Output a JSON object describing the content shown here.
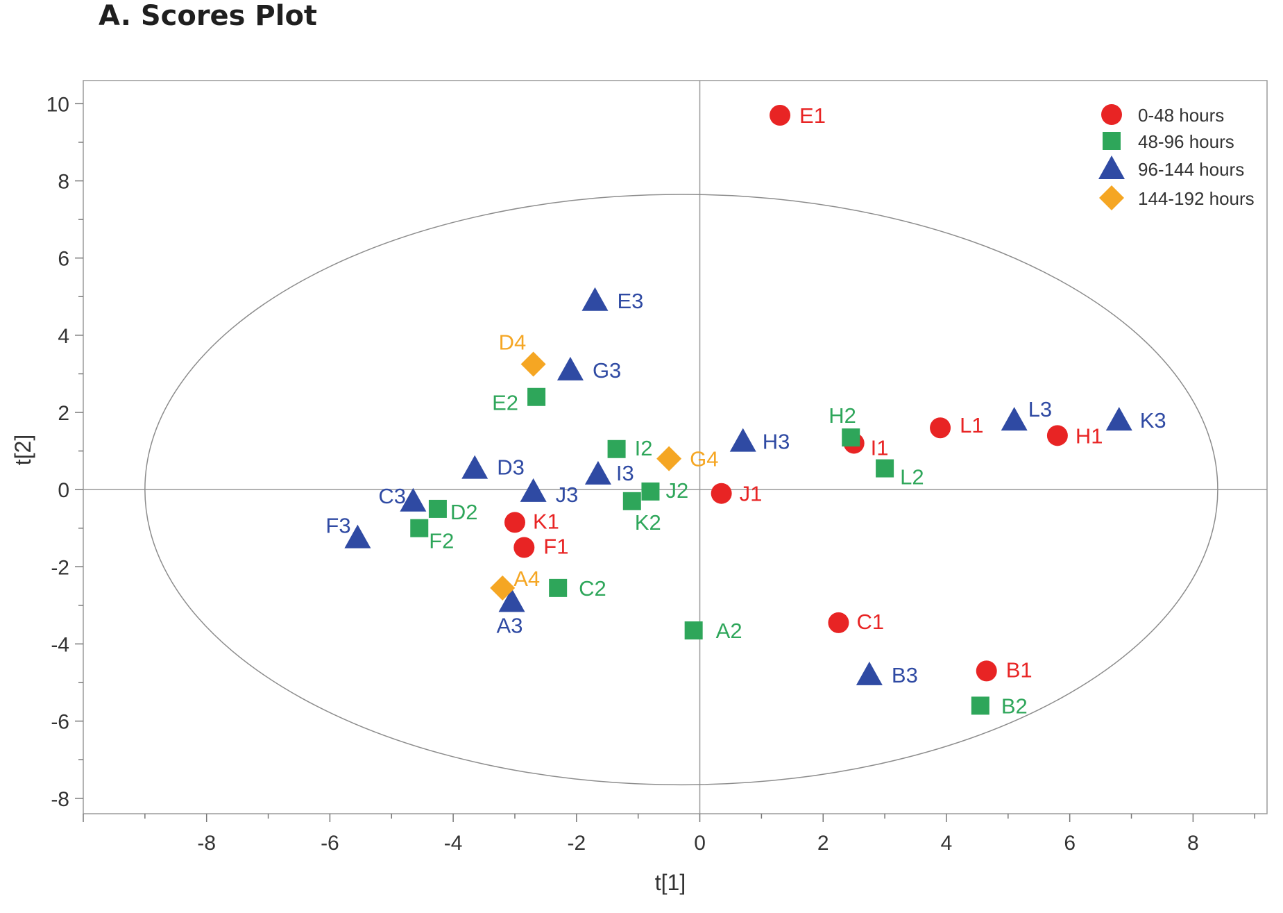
{
  "title": "A. Scores Plot",
  "chart_data": {
    "type": "scatter",
    "xlabel": "t[1]",
    "ylabel": "t[2]",
    "xlim": [
      -10,
      9.2
    ],
    "ylim": [
      -8.4,
      10.6
    ],
    "xticks": [
      "-8",
      "-6",
      "-4",
      "-2",
      "0",
      "2",
      "4",
      "6",
      "8"
    ],
    "yticks": [
      "10",
      "8",
      "6",
      "4",
      "2",
      "0",
      "-2",
      "-4",
      "-6",
      "-8"
    ],
    "ellipse": {
      "cx": -0.3,
      "cy": 0,
      "rx": 8.7,
      "ry": 7.65
    },
    "grid": false,
    "reference_lines": {
      "x": 0,
      "y": 0
    },
    "legend_position": "top-right",
    "series": [
      {
        "name": "0-48 hours",
        "marker": "circle",
        "color": "#e82424",
        "points": [
          {
            "label": "E1",
            "x": 1.3,
            "y": 9.7
          },
          {
            "label": "L1",
            "x": 3.9,
            "y": 1.6
          },
          {
            "label": "H1",
            "x": 5.8,
            "y": 1.4
          },
          {
            "label": "I1",
            "x": 2.5,
            "y": 1.2
          },
          {
            "label": "J1",
            "x": 0.35,
            "y": -0.1
          },
          {
            "label": "K1",
            "x": -3.0,
            "y": -0.85
          },
          {
            "label": "F1",
            "x": -2.85,
            "y": -1.5
          },
          {
            "label": "C1",
            "x": 2.25,
            "y": -3.45
          },
          {
            "label": "B1",
            "x": 4.65,
            "y": -4.7
          }
        ]
      },
      {
        "name": "48-96 hours",
        "marker": "square",
        "color": "#2ea65a",
        "points": [
          {
            "label": "E2",
            "x": -2.65,
            "y": 2.4
          },
          {
            "label": "I2",
            "x": -1.35,
            "y": 1.05
          },
          {
            "label": "H2",
            "x": 2.45,
            "y": 1.35
          },
          {
            "label": "L2",
            "x": 3.0,
            "y": 0.55
          },
          {
            "label": "J2",
            "x": -0.8,
            "y": -0.05
          },
          {
            "label": "K2",
            "x": -1.1,
            "y": -0.3
          },
          {
            "label": "D2",
            "x": -4.25,
            "y": -0.5
          },
          {
            "label": "F2",
            "x": -4.55,
            "y": -1.0
          },
          {
            "label": "C2",
            "x": -2.3,
            "y": -2.55
          },
          {
            "label": "A2",
            "x": -0.1,
            "y": -3.65
          },
          {
            "label": "B2",
            "x": 4.55,
            "y": -5.6
          }
        ]
      },
      {
        "name": "96-144 hours",
        "marker": "triangle",
        "color": "#2f4aa3",
        "points": [
          {
            "label": "E3",
            "x": -1.7,
            "y": 4.9
          },
          {
            "label": "G3",
            "x": -2.1,
            "y": 3.1
          },
          {
            "label": "H3",
            "x": 0.7,
            "y": 1.25
          },
          {
            "label": "L3",
            "x": 5.1,
            "y": 1.8
          },
          {
            "label": "K3",
            "x": 6.8,
            "y": 1.8
          },
          {
            "label": "D3",
            "x": -3.65,
            "y": 0.55
          },
          {
            "label": "I3",
            "x": -1.65,
            "y": 0.4
          },
          {
            "label": "J3",
            "x": -2.7,
            "y": -0.05
          },
          {
            "label": "C3",
            "x": -4.65,
            "y": -0.3
          },
          {
            "label": "F3",
            "x": -5.55,
            "y": -1.25
          },
          {
            "label": "A3",
            "x": -3.05,
            "y": -2.9
          },
          {
            "label": "B3",
            "x": 2.75,
            "y": -4.8
          }
        ]
      },
      {
        "name": "144-192 hours",
        "marker": "diamond",
        "color": "#f5a623",
        "points": [
          {
            "label": "D4",
            "x": -2.7,
            "y": 3.25
          },
          {
            "label": "G4",
            "x": -0.5,
            "y": 0.8
          },
          {
            "label": "A4",
            "x": -3.2,
            "y": -2.55
          }
        ]
      }
    ]
  }
}
